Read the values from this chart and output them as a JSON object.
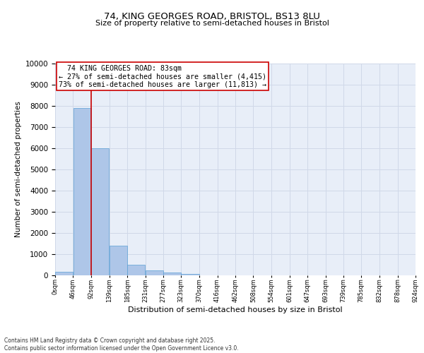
{
  "title_line1": "74, KING GEORGES ROAD, BRISTOL, BS13 8LU",
  "title_line2": "Size of property relative to semi-detached houses in Bristol",
  "xlabel": "Distribution of semi-detached houses by size in Bristol",
  "ylabel": "Number of semi-detached properties",
  "bar_color": "#aec6e8",
  "bar_edge_color": "#5a9fd4",
  "bin_edges": [
    0,
    46,
    92,
    139,
    185,
    231,
    277,
    323,
    370,
    416,
    462,
    508,
    554,
    601,
    647,
    693,
    739,
    785,
    832,
    878,
    924
  ],
  "bin_labels": [
    "0sqm",
    "46sqm",
    "92sqm",
    "139sqm",
    "185sqm",
    "231sqm",
    "277sqm",
    "323sqm",
    "370sqm",
    "416sqm",
    "462sqm",
    "508sqm",
    "554sqm",
    "601sqm",
    "647sqm",
    "693sqm",
    "739sqm",
    "785sqm",
    "832sqm",
    "878sqm",
    "924sqm"
  ],
  "bar_heights": [
    170,
    7900,
    6000,
    1400,
    490,
    230,
    140,
    80,
    0,
    0,
    0,
    0,
    0,
    0,
    0,
    0,
    0,
    0,
    0,
    0
  ],
  "ylim": [
    0,
    10000
  ],
  "yticks": [
    0,
    1000,
    2000,
    3000,
    4000,
    5000,
    6000,
    7000,
    8000,
    9000,
    10000
  ],
  "property_label": "74 KING GEORGES ROAD: 83sqm",
  "pct_smaller": 27,
  "pct_larger": 73,
  "count_smaller": 4415,
  "count_larger": 11813,
  "vline_x": 92,
  "annotation_box_color": "#ffffff",
  "annotation_box_edge": "#cc0000",
  "vline_color": "#cc0000",
  "grid_color": "#d0d8e8",
  "background_color": "#e8eef8",
  "footer_line1": "Contains HM Land Registry data © Crown copyright and database right 2025.",
  "footer_line2": "Contains public sector information licensed under the Open Government Licence v3.0."
}
